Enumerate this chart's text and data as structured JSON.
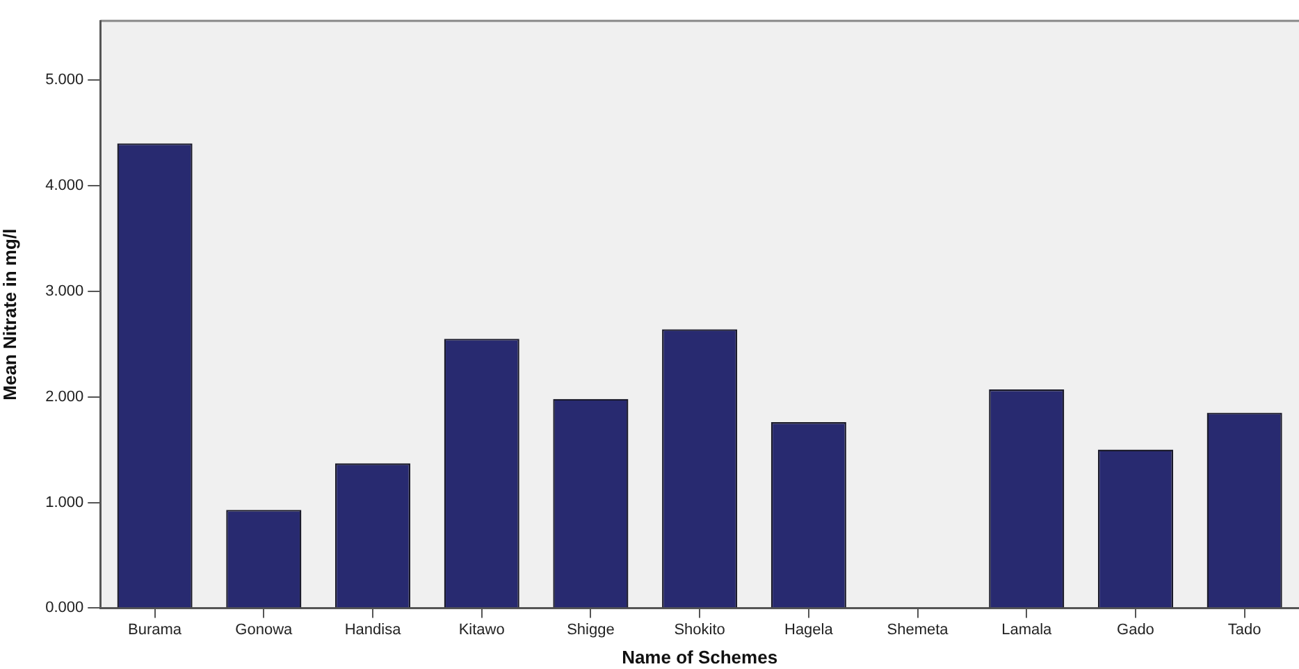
{
  "chart_data": {
    "type": "bar",
    "xlabel": "Name of Schemes",
    "ylabel": "Mean Nitrate in mg/l",
    "categories": [
      "Burama",
      "Gonowa",
      "Handisa",
      "Kitawo",
      "Shigge",
      "Shokito",
      "Hagela",
      "Shemeta",
      "Lamala",
      "Gado",
      "Tado"
    ],
    "values": [
      4.4,
      0.93,
      1.37,
      2.55,
      1.98,
      2.64,
      1.76,
      null,
      2.07,
      1.5,
      1.85
    ],
    "color": "#282a70",
    "ylim": [
      0,
      5.56
    ],
    "yticks": [
      {
        "value": 0,
        "label": "0.000"
      },
      {
        "value": 1,
        "label": "1.000"
      },
      {
        "value": 2,
        "label": "2.000"
      },
      {
        "value": 3,
        "label": "3.000"
      },
      {
        "value": 4,
        "label": "4.000"
      },
      {
        "value": 5,
        "label": "5.000"
      }
    ],
    "grid": false,
    "legend": false
  }
}
